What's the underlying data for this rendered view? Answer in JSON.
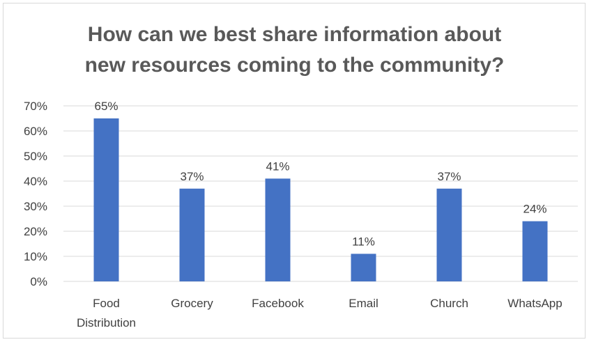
{
  "chart_data": {
    "type": "bar",
    "title_lines": [
      "How can we best share information about",
      "new resources coming to the community?"
    ],
    "categories": [
      [
        "Food",
        "Distribution"
      ],
      [
        "Grocery"
      ],
      [
        "Facebook"
      ],
      [
        "Email"
      ],
      [
        "Church"
      ],
      [
        "WhatsApp"
      ]
    ],
    "values": [
      65,
      37,
      41,
      11,
      37,
      24
    ],
    "data_labels": [
      "65%",
      "37%",
      "41%",
      "11%",
      "37%",
      "24%"
    ],
    "y_ticks": [
      "0%",
      "10%",
      "20%",
      "30%",
      "40%",
      "50%",
      "60%",
      "70%"
    ],
    "ylim": [
      0,
      70
    ],
    "ylabel_unit": "%",
    "grid": true,
    "legend": "none",
    "bar_color": "#4472c4",
    "gridline_color": "#d9d9d9"
  }
}
